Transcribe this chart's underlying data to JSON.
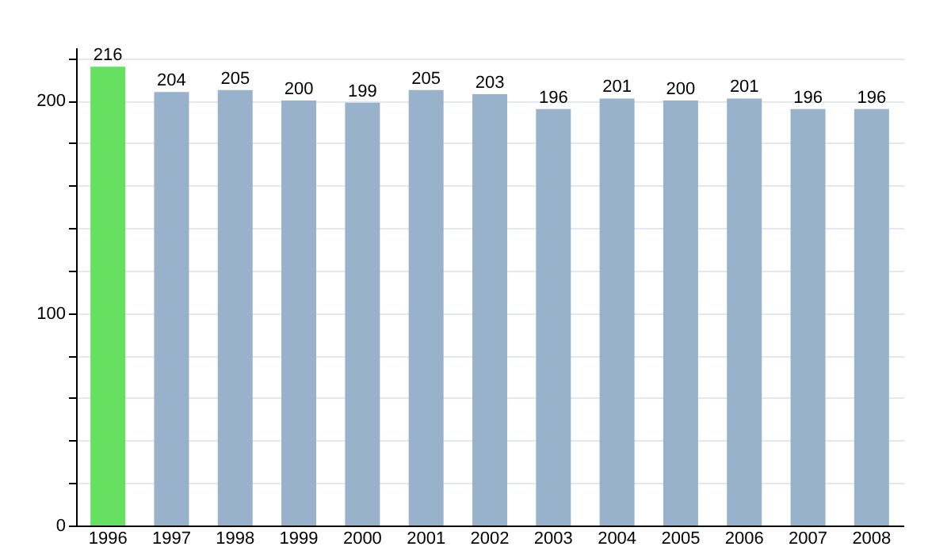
{
  "chart_data": {
    "type": "bar",
    "categories": [
      "1996",
      "1997",
      "1998",
      "1999",
      "2000",
      "2001",
      "2002",
      "2003",
      "2004",
      "2005",
      "2006",
      "2007",
      "2008"
    ],
    "values": [
      216,
      204,
      205,
      200,
      199,
      205,
      203,
      196,
      201,
      200,
      201,
      196,
      196
    ],
    "colors": [
      "#66e060",
      "#98b2cc",
      "#98b2cc",
      "#98b2cc",
      "#98b2cc",
      "#98b2cc",
      "#98b2cc",
      "#98b2cc",
      "#98b2cc",
      "#98b2cc",
      "#98b2cc",
      "#98b2cc",
      "#98b2cc"
    ],
    "ylim": [
      0,
      225
    ],
    "yticks": [
      0,
      {
        "value": 20,
        "label": null
      },
      {
        "value": 40,
        "label": null
      },
      {
        "value": 60,
        "label": null
      },
      {
        "value": 80,
        "label": null
      },
      100,
      {
        "value": 120,
        "label": null
      },
      {
        "value": 140,
        "label": null
      },
      {
        "value": 160,
        "label": null
      },
      {
        "value": 180,
        "label": null
      },
      200,
      {
        "value": 220,
        "label": null
      }
    ],
    "grid": "y",
    "data_labels": true
  }
}
